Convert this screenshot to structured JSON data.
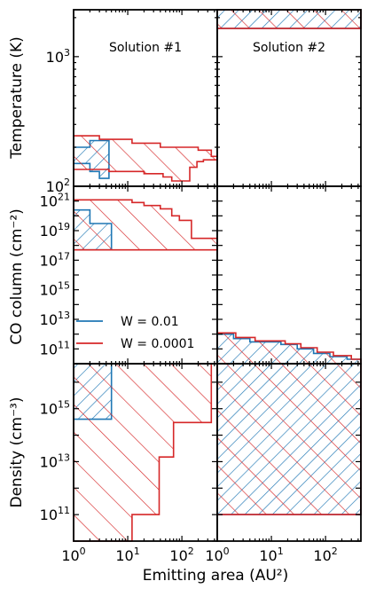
{
  "colors": {
    "series1": "#1f77b4",
    "series2": "#d62728"
  },
  "chart_data": [
    {
      "type": "area",
      "panel": "temperature-solution-1",
      "title": "Solution #1",
      "ylabel": "Temperature (K)",
      "yscale": "log",
      "xscale": "log",
      "xlim": [
        1,
        450
      ],
      "ylim": [
        100,
        2300
      ],
      "yticks": [
        {
          "value": 100,
          "label": "10",
          "exp": "2"
        },
        {
          "value": 1000,
          "label": "10",
          "exp": "3"
        }
      ],
      "series": [
        {
          "name": "W = 0.01",
          "upper": [
            [
              1,
              200
            ],
            [
              2,
              200
            ],
            [
              2,
              225
            ],
            [
              4.5,
              225
            ]
          ],
          "lower": [
            [
              1,
              150
            ],
            [
              2,
              150
            ],
            [
              2,
              130
            ],
            [
              3,
              130
            ],
            [
              3,
              115
            ],
            [
              4.5,
              115
            ]
          ]
        },
        {
          "name": "W = 0.0001",
          "upper": [
            [
              1,
              245
            ],
            [
              3,
              245
            ],
            [
              3,
              230
            ],
            [
              12,
              230
            ],
            [
              12,
              215
            ],
            [
              40,
              215
            ],
            [
              40,
              200
            ],
            [
              200,
              200
            ],
            [
              200,
              190
            ],
            [
              350,
              190
            ],
            [
              350,
              170
            ],
            [
              450,
              170
            ]
          ],
          "lower": [
            [
              1,
              135
            ],
            [
              4.5,
              135
            ],
            [
              4.5,
              130
            ],
            [
              20,
              130
            ],
            [
              20,
              125
            ],
            [
              45,
              125
            ],
            [
              45,
              118
            ],
            [
              65,
              118
            ],
            [
              65,
              110
            ],
            [
              140,
              110
            ],
            [
              140,
              140
            ],
            [
              190,
              140
            ],
            [
              190,
              155
            ],
            [
              250,
              155
            ],
            [
              250,
              160
            ],
            [
              450,
              160
            ]
          ]
        }
      ]
    },
    {
      "type": "area",
      "panel": "temperature-solution-2",
      "title": "Solution #2",
      "yscale": "log",
      "xscale": "log",
      "xlim": [
        1,
        450
      ],
      "ylim": [
        100,
        2300
      ],
      "series": [
        {
          "name": "W = 0.01",
          "upper": [
            [
              1,
              2300
            ],
            [
              450,
              2300
            ]
          ],
          "lower": [
            [
              1,
              1650
            ],
            [
              450,
              1650
            ]
          ]
        },
        {
          "name": "W = 0.0001",
          "upper": [
            [
              1,
              2300
            ],
            [
              450,
              2300
            ]
          ],
          "lower": [
            [
              1,
              1650
            ],
            [
              450,
              1650
            ]
          ]
        }
      ]
    },
    {
      "type": "area",
      "panel": "co-column-solution-1",
      "ylabel": "CO column (cm⁻²)",
      "yscale": "log",
      "xscale": "log",
      "xlim": [
        1,
        450
      ],
      "ylim": [
        10000000000.0,
        1e+22
      ],
      "yticks": [
        {
          "value": 100000000000.0,
          "label": "10",
          "exp": "11"
        },
        {
          "value": 10000000000000.0,
          "label": "10",
          "exp": "13"
        },
        {
          "value": 1000000000000000.0,
          "label": "10",
          "exp": "15"
        },
        {
          "value": 1e+17,
          "label": "10",
          "exp": "17"
        },
        {
          "value": 1e+19,
          "label": "10",
          "exp": "19"
        },
        {
          "value": 1e+21,
          "label": "10",
          "exp": "21"
        }
      ],
      "series": [
        {
          "name": "W = 0.01",
          "upper": [
            [
              1,
              2.5e+20
            ],
            [
              2,
              2.5e+20
            ],
            [
              2,
              3e+19
            ],
            [
              5,
              3e+19
            ]
          ],
          "lower": [
            [
              1,
              5e+17
            ],
            [
              5,
              5e+17
            ]
          ]
        },
        {
          "name": "W = 0.0001",
          "upper": [
            [
              1,
              1.2e+21
            ],
            [
              12,
              1.2e+21
            ],
            [
              12,
              8e+20
            ],
            [
              20,
              8e+20
            ],
            [
              20,
              5e+20
            ],
            [
              40,
              5e+20
            ],
            [
              40,
              3e+20
            ],
            [
              65,
              3e+20
            ],
            [
              65,
              1e+20
            ],
            [
              90,
              1e+20
            ],
            [
              90,
              5e+19
            ],
            [
              150,
              5e+19
            ],
            [
              150,
              3e+18
            ],
            [
              450,
              3e+18
            ]
          ],
          "lower": [
            [
              1,
              5e+17
            ],
            [
              450,
              5e+17
            ]
          ]
        }
      ]
    },
    {
      "type": "area",
      "panel": "co-column-solution-2",
      "yscale": "log",
      "xscale": "log",
      "xlim": [
        1,
        450
      ],
      "ylim": [
        10000000000.0,
        1e+22
      ],
      "series": [
        {
          "name": "W = 0.01",
          "upper": [
            [
              1,
              1000000000000.0
            ],
            [
              2,
              1000000000000.0
            ],
            [
              2,
              500000000000.0
            ],
            [
              4,
              500000000000.0
            ],
            [
              4,
              300000000000.0
            ],
            [
              15,
              300000000000.0
            ],
            [
              15,
              200000000000.0
            ],
            [
              30,
              200000000000.0
            ],
            [
              30,
              100000000000.0
            ],
            [
              60,
              100000000000.0
            ],
            [
              60,
              50000000000.0
            ],
            [
              120,
              50000000000.0
            ],
            [
              120,
              30000000000.0
            ],
            [
              250,
              30000000000.0
            ],
            [
              250,
              20000000000.0
            ],
            [
              450,
              20000000000.0
            ]
          ],
          "lower": [
            [
              1,
              10000000000.0
            ],
            [
              450,
              10000000000.0
            ]
          ]
        },
        {
          "name": "W = 0.0001",
          "upper": [
            [
              1,
              1200000000000.0
            ],
            [
              2.2,
              1200000000000.0
            ],
            [
              2.2,
              600000000000.0
            ],
            [
              5,
              600000000000.0
            ],
            [
              5,
              350000000000.0
            ],
            [
              18,
              350000000000.0
            ],
            [
              18,
              220000000000.0
            ],
            [
              35,
              220000000000.0
            ],
            [
              35,
              120000000000.0
            ],
            [
              70,
              120000000000.0
            ],
            [
              70,
              60000000000.0
            ],
            [
              140,
              60000000000.0
            ],
            [
              140,
              35000000000.0
            ],
            [
              300,
              35000000000.0
            ],
            [
              300,
              20000000000.0
            ],
            [
              450,
              20000000000.0
            ]
          ],
          "lower": [
            [
              1,
              10000000000.0
            ],
            [
              450,
              10000000000.0
            ]
          ]
        }
      ]
    },
    {
      "type": "area",
      "panel": "density-solution-1",
      "ylabel": "Density (cm⁻³)",
      "xlabel": "Emitting area (AU²)",
      "yscale": "log",
      "xscale": "log",
      "xlim": [
        1,
        450
      ],
      "ylim": [
        10000000000.0,
        5e+16
      ],
      "yticks": [
        {
          "value": 100000000000.0,
          "label": "10",
          "exp": "11"
        },
        {
          "value": 10000000000000.0,
          "label": "10",
          "exp": "13"
        },
        {
          "value": 1000000000000000.0,
          "label": "10",
          "exp": "15"
        }
      ],
      "xticks": [
        {
          "value": 1,
          "label": "10",
          "exp": "0"
        },
        {
          "value": 10,
          "label": "10",
          "exp": "1"
        },
        {
          "value": 100,
          "label": "10",
          "exp": "2"
        }
      ],
      "series": [
        {
          "name": "W = 0.01",
          "upper": [
            [
              1,
              5e+16
            ],
            [
              5,
              5e+16
            ]
          ],
          "lower": [
            [
              1,
              400000000000000.0
            ],
            [
              5,
              400000000000000.0
            ]
          ]
        },
        {
          "name": "W = 0.0001",
          "upper": [
            [
              1,
              5e+16
            ],
            [
              350,
              5e+16
            ]
          ],
          "lower": [
            [
              1,
              10000000000.0
            ],
            [
              12,
              10000000000.0
            ],
            [
              12,
              100000000000.0
            ],
            [
              38,
              100000000000.0
            ],
            [
              38,
              15000000000000.0
            ],
            [
              70,
              15000000000000.0
            ],
            [
              70,
              300000000000000.0
            ],
            [
              350,
              300000000000000.0
            ],
            [
              350,
              5e+16
            ]
          ]
        }
      ]
    },
    {
      "type": "area",
      "panel": "density-solution-2",
      "yscale": "log",
      "xscale": "log",
      "xlim": [
        1,
        450
      ],
      "ylim": [
        10000000000.0,
        5e+16
      ],
      "xticks": [
        {
          "value": 1,
          "label": "10",
          "exp": "0"
        },
        {
          "value": 10,
          "label": "10",
          "exp": "1"
        },
        {
          "value": 100,
          "label": "10",
          "exp": "2"
        }
      ],
      "series": [
        {
          "name": "W = 0.01",
          "upper": [
            [
              1,
              5e+16
            ],
            [
              450,
              5e+16
            ]
          ],
          "lower": [
            [
              1,
              100000000000.0
            ],
            [
              450,
              100000000000.0
            ]
          ]
        },
        {
          "name": "W = 0.0001",
          "upper": [
            [
              1,
              5e+16
            ],
            [
              450,
              5e+16
            ]
          ],
          "lower": [
            [
              1,
              100000000000.0
            ],
            [
              450,
              100000000000.0
            ]
          ]
        }
      ]
    }
  ]
}
